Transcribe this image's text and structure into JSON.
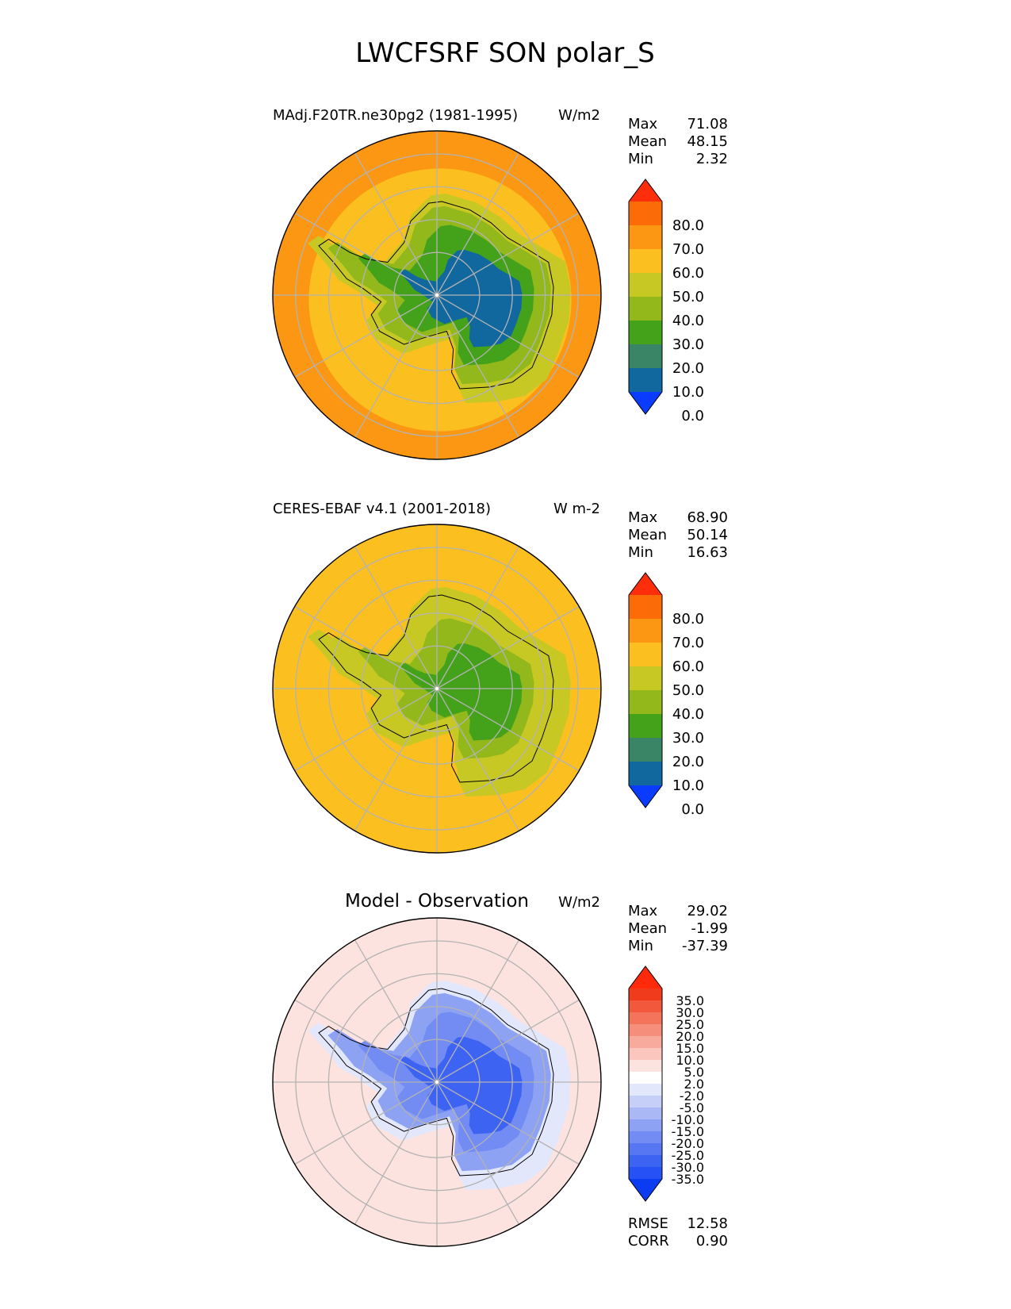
{
  "figure_title": "LWCFSRF SON polar_S",
  "chart_data": [
    {
      "type": "heatmap",
      "projection": "south-polar-stereographic",
      "title": "MAdj.F20TR.ne30pg2 (1981-1995)",
      "units": "W/m2",
      "stats": [
        {
          "label": "Max",
          "value": "71.08"
        },
        {
          "label": "Mean",
          "value": "48.15"
        },
        {
          "label": "Min",
          "value": "2.32"
        }
      ],
      "colorbar": {
        "levels": [
          0,
          10,
          20,
          30,
          40,
          50,
          60,
          70,
          80
        ],
        "tick_labels": [
          "80.0",
          "70.0",
          "60.0",
          "50.0",
          "40.0",
          "30.0",
          "20.0",
          "10.0",
          "0.0"
        ],
        "colors": [
          "#0a3cff",
          "#10689e",
          "#3a8565",
          "#44a21a",
          "#92b81c",
          "#c8c825",
          "#fbbf20",
          "#fb9712",
          "#fb6b07",
          "#fe2d0a"
        ],
        "extend": "both"
      },
      "field": {
        "ocean_level": 65,
        "ring_level": 55,
        "coast_level": 45,
        "inner_level": 35,
        "interior_level": 25,
        "core_level": 8
      }
    },
    {
      "type": "heatmap",
      "projection": "south-polar-stereographic",
      "title": "CERES-EBAF v4.1 (2001-2018)",
      "units": "W m-2",
      "stats": [
        {
          "label": "Max",
          "value": "68.90"
        },
        {
          "label": "Mean",
          "value": "50.14"
        },
        {
          "label": "Min",
          "value": "16.63"
        }
      ],
      "colorbar": {
        "levels": [
          0,
          10,
          20,
          30,
          40,
          50,
          60,
          70,
          80
        ],
        "tick_labels": [
          "80.0",
          "70.0",
          "60.0",
          "50.0",
          "40.0",
          "30.0",
          "20.0",
          "10.0",
          "0.0"
        ],
        "colors": [
          "#0a3cff",
          "#10689e",
          "#3a8565",
          "#44a21a",
          "#92b81c",
          "#c8c825",
          "#fbbf20",
          "#fb9712",
          "#fb6b07",
          "#fe2d0a"
        ],
        "extend": "both"
      },
      "field": {
        "ocean_level": 55,
        "ring_level": 55,
        "coast_level": 45,
        "inner_level": 42,
        "interior_level": 35,
        "core_level": 28
      }
    },
    {
      "type": "heatmap",
      "projection": "south-polar-stereographic",
      "title": "Model - Observation",
      "units": "W/m2",
      "stats": [
        {
          "label": "Max",
          "value": "29.02"
        },
        {
          "label": "Mean",
          "value": "-1.99"
        },
        {
          "label": "Min",
          "value": "-37.39"
        }
      ],
      "colorbar": {
        "levels": [
          -35,
          -30,
          -25,
          -20,
          -15,
          -10,
          -5,
          -2,
          2,
          5,
          10,
          15,
          20,
          25,
          30,
          35
        ],
        "tick_labels": [
          "35.0",
          "30.0",
          "25.0",
          "20.0",
          "15.0",
          "10.0",
          "5.0",
          "2.0",
          "-2.0",
          "-5.0",
          "-10.0",
          "-15.0",
          "-20.0",
          "-25.0",
          "-30.0",
          "-35.0"
        ],
        "colors": [
          "#0b3cf2",
          "#2551f5",
          "#3d63f3",
          "#5777f2",
          "#728cf3",
          "#8ea2f4",
          "#aab8f6",
          "#c6cff8",
          "#e3e7fc",
          "#ffffff",
          "#fde3df",
          "#fbc6be",
          "#f8aa9c",
          "#f68e7c",
          "#f3735b",
          "#f1583c",
          "#f03c1c",
          "#ff2a0a"
        ],
        "extend": "both"
      },
      "field": {
        "ocean_level": 8,
        "ring_level": 6,
        "coast_level": 0,
        "inner_level": -12,
        "interior_level": -18,
        "core_level": -28
      },
      "metrics": [
        {
          "label": "RMSE",
          "value": "12.58"
        },
        {
          "label": "CORR",
          "value": "0.90"
        }
      ]
    }
  ]
}
